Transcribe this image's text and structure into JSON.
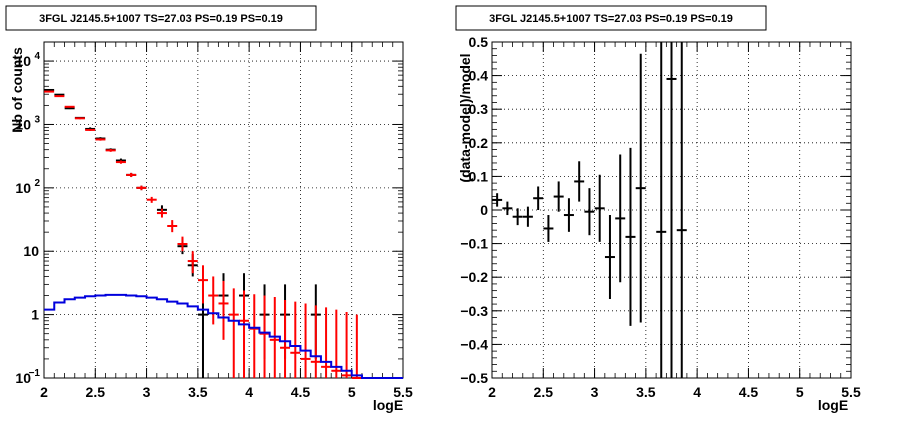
{
  "chart_data": [
    {
      "type": "scatter",
      "title": "3FGL J2145.5+1007 TS=27.03 PS=0.19 PS=0.19",
      "xlabel": "logE",
      "ylabel": "Nb of counts",
      "xlim": [
        2,
        5.5
      ],
      "ylim": [
        0.1,
        20000
      ],
      "yscale": "log",
      "grid": true,
      "x_ticks": [
        "2",
        "2.5",
        "3",
        "3.5",
        "4",
        "4.5",
        "5",
        "5.5"
      ],
      "y_ticks": [
        {
          "value": 0.1,
          "label": "10",
          "sup": "−1"
        },
        {
          "value": 1,
          "label": "1",
          "sup": ""
        },
        {
          "value": 10,
          "label": "10",
          "sup": ""
        },
        {
          "value": 100,
          "label": "10",
          "sup": "2"
        },
        {
          "value": 1000,
          "label": "10",
          "sup": "3"
        },
        {
          "value": 10000,
          "label": "10",
          "sup": "4"
        }
      ],
      "series": [
        {
          "kind": "data",
          "color": "#000000",
          "points": [
            {
              "x": 2.05,
              "y": 3500,
              "lo": 3450,
              "hi": 3560
            },
            {
              "x": 2.15,
              "y": 2950,
              "lo": 2890,
              "hi": 3010
            },
            {
              "x": 2.25,
              "y": 1800,
              "lo": 1750,
              "hi": 1850
            },
            {
              "x": 2.35,
              "y": 1270,
              "lo": 1230,
              "hi": 1310
            },
            {
              "x": 2.45,
              "y": 850,
              "lo": 800,
              "hi": 900
            },
            {
              "x": 2.55,
              "y": 600,
              "lo": 570,
              "hi": 630
            },
            {
              "x": 2.65,
              "y": 400,
              "lo": 380,
              "hi": 420
            },
            {
              "x": 2.75,
              "y": 270,
              "lo": 250,
              "hi": 290
            },
            {
              "x": 2.85,
              "y": 160,
              "lo": 150,
              "hi": 172
            },
            {
              "x": 2.95,
              "y": 100,
              "lo": 92,
              "hi": 108
            },
            {
              "x": 3.15,
              "y": 45,
              "lo": 38,
              "hi": 53
            },
            {
              "x": 3.35,
              "y": 12,
              "lo": 9,
              "hi": 16
            },
            {
              "x": 3.45,
              "y": 6,
              "lo": 4,
              "hi": 9
            },
            {
              "x": 3.55,
              "y": 1,
              "lo": 0.1,
              "hi": 3
            },
            {
              "x": 3.75,
              "y": 2,
              "lo": 0.7,
              "hi": 4.5
            },
            {
              "x": 3.95,
              "y": 2,
              "lo": 0.7,
              "hi": 4.5
            },
            {
              "x": 4.15,
              "y": 1,
              "lo": 0.2,
              "hi": 3
            },
            {
              "x": 4.35,
              "y": 1,
              "lo": 0.2,
              "hi": 3
            },
            {
              "x": 4.65,
              "y": 1,
              "lo": 0.2,
              "hi": 3
            }
          ]
        },
        {
          "kind": "model",
          "color": "#ff0000",
          "points": [
            {
              "x": 2.05,
              "y": 3300,
              "lo": 3250,
              "hi": 3350
            },
            {
              "x": 2.15,
              "y": 2800,
              "lo": 2750,
              "hi": 2850
            },
            {
              "x": 2.25,
              "y": 1900,
              "lo": 1850,
              "hi": 1950
            },
            {
              "x": 2.35,
              "y": 1250,
              "lo": 1210,
              "hi": 1290
            },
            {
              "x": 2.45,
              "y": 820,
              "lo": 790,
              "hi": 850
            },
            {
              "x": 2.55,
              "y": 580,
              "lo": 555,
              "hi": 605
            },
            {
              "x": 2.65,
              "y": 390,
              "lo": 370,
              "hi": 410
            },
            {
              "x": 2.75,
              "y": 255,
              "lo": 240,
              "hi": 270
            },
            {
              "x": 2.85,
              "y": 160,
              "lo": 148,
              "hi": 172
            },
            {
              "x": 2.95,
              "y": 100,
              "lo": 92,
              "hi": 108
            },
            {
              "x": 3.05,
              "y": 65,
              "lo": 58,
              "hi": 72
            },
            {
              "x": 3.15,
              "y": 40,
              "lo": 34,
              "hi": 47
            },
            {
              "x": 3.25,
              "y": 25,
              "lo": 20,
              "hi": 31
            },
            {
              "x": 3.35,
              "y": 13,
              "lo": 10,
              "hi": 17
            },
            {
              "x": 3.45,
              "y": 7,
              "lo": 4.5,
              "hi": 10
            },
            {
              "x": 3.55,
              "y": 3.5,
              "lo": 1.5,
              "hi": 6
            },
            {
              "x": 3.65,
              "y": 2,
              "lo": 0.7,
              "hi": 4
            },
            {
              "x": 3.75,
              "y": 1.5,
              "lo": 0.4,
              "hi": 3.4
            },
            {
              "x": 3.85,
              "y": 1,
              "lo": 0.1,
              "hi": 2.6
            },
            {
              "x": 3.95,
              "y": 0.8,
              "lo": 0.1,
              "hi": 2.4
            },
            {
              "x": 4.05,
              "y": 0.6,
              "lo": 0.1,
              "hi": 2.1
            },
            {
              "x": 4.15,
              "y": 0.5,
              "lo": 0.1,
              "hi": 2.0
            },
            {
              "x": 4.25,
              "y": 0.4,
              "lo": 0.1,
              "hi": 1.9
            },
            {
              "x": 4.35,
              "y": 0.3,
              "lo": 0.1,
              "hi": 1.7
            },
            {
              "x": 4.45,
              "y": 0.25,
              "lo": 0.1,
              "hi": 1.6
            },
            {
              "x": 4.55,
              "y": 0.2,
              "lo": 0.1,
              "hi": 1.5
            },
            {
              "x": 4.65,
              "y": 0.18,
              "lo": 0.1,
              "hi": 1.4
            },
            {
              "x": 4.75,
              "y": 0.15,
              "lo": 0.1,
              "hi": 1.3
            },
            {
              "x": 4.85,
              "y": 0.13,
              "lo": 0.1,
              "hi": 1.2
            },
            {
              "x": 4.95,
              "y": 0.11,
              "lo": 0.1,
              "hi": 1.1
            },
            {
              "x": 5.05,
              "y": 0.1,
              "lo": 0.1,
              "hi": 1.0
            }
          ]
        },
        {
          "kind": "step",
          "color": "#0000dd",
          "bin_width": 0.1,
          "x": [
            2.0,
            2.1,
            2.2,
            2.3,
            2.4,
            2.5,
            2.6,
            2.7,
            2.8,
            2.9,
            3.0,
            3.1,
            3.2,
            3.3,
            3.4,
            3.5,
            3.6,
            3.7,
            3.8,
            3.9,
            4.0,
            4.1,
            4.2,
            4.3,
            4.4,
            4.5,
            4.6,
            4.7,
            4.8,
            4.9,
            5.0,
            5.1,
            5.2,
            5.3,
            5.4
          ],
          "y": [
            1.2,
            1.55,
            1.75,
            1.85,
            1.95,
            2.0,
            2.05,
            2.05,
            2.0,
            1.95,
            1.85,
            1.75,
            1.6,
            1.5,
            1.35,
            1.2,
            1.05,
            0.9,
            0.8,
            0.7,
            0.62,
            0.52,
            0.45,
            0.38,
            0.32,
            0.27,
            0.22,
            0.18,
            0.15,
            0.13,
            0.11,
            0.1,
            0.1,
            0.1,
            0.1
          ]
        }
      ]
    },
    {
      "type": "scatter",
      "title": "3FGL J2145.5+1007 TS=27.03 PS=0.19 PS=0.19",
      "xlabel": "logE",
      "ylabel": "(data-model)/model",
      "xlim": [
        2,
        5.5
      ],
      "ylim": [
        -0.5,
        0.5
      ],
      "yscale": "linear",
      "grid": true,
      "x_ticks": [
        "2",
        "2.5",
        "3",
        "3.5",
        "4",
        "4.5",
        "5",
        "5.5"
      ],
      "y_ticks": [
        "−0.5",
        "−0.4",
        "−0.3",
        "−0.2",
        "−0.1",
        "0",
        "0.1",
        "0.2",
        "0.3",
        "0.4",
        "0.5"
      ],
      "series": [
        {
          "kind": "residual",
          "color": "#000000",
          "points": [
            {
              "x": 2.05,
              "y": 0.03,
              "lo": 0.01,
              "hi": 0.05
            },
            {
              "x": 2.15,
              "y": 0.005,
              "lo": -0.015,
              "hi": 0.025
            },
            {
              "x": 2.25,
              "y": -0.02,
              "lo": -0.045,
              "hi": 0.005
            },
            {
              "x": 2.35,
              "y": -0.02,
              "lo": -0.05,
              "hi": 0.01
            },
            {
              "x": 2.45,
              "y": 0.035,
              "lo": 0.0,
              "hi": 0.07
            },
            {
              "x": 2.55,
              "y": -0.055,
              "lo": -0.095,
              "hi": -0.015
            },
            {
              "x": 2.65,
              "y": 0.04,
              "lo": -0.005,
              "hi": 0.085
            },
            {
              "x": 2.75,
              "y": -0.015,
              "lo": -0.065,
              "hi": 0.035
            },
            {
              "x": 2.85,
              "y": 0.085,
              "lo": 0.025,
              "hi": 0.145
            },
            {
              "x": 2.95,
              "y": -0.005,
              "lo": -0.075,
              "hi": 0.065
            },
            {
              "x": 3.05,
              "y": 0.005,
              "lo": -0.095,
              "hi": 0.105
            },
            {
              "x": 3.15,
              "y": -0.14,
              "lo": -0.265,
              "hi": -0.015
            },
            {
              "x": 3.25,
              "y": -0.025,
              "lo": -0.215,
              "hi": 0.165
            },
            {
              "x": 3.35,
              "y": -0.08,
              "lo": -0.345,
              "hi": 0.185
            },
            {
              "x": 3.45,
              "y": 0.065,
              "lo": -0.335,
              "hi": 0.465
            },
            {
              "x": 3.65,
              "y": -0.065,
              "lo": -0.5,
              "hi": 0.5
            },
            {
              "x": 3.75,
              "y": 0.39,
              "lo": -0.5,
              "hi": 0.5
            },
            {
              "x": 3.85,
              "y": -0.06,
              "lo": -0.5,
              "hi": 0.5
            }
          ]
        }
      ]
    }
  ]
}
